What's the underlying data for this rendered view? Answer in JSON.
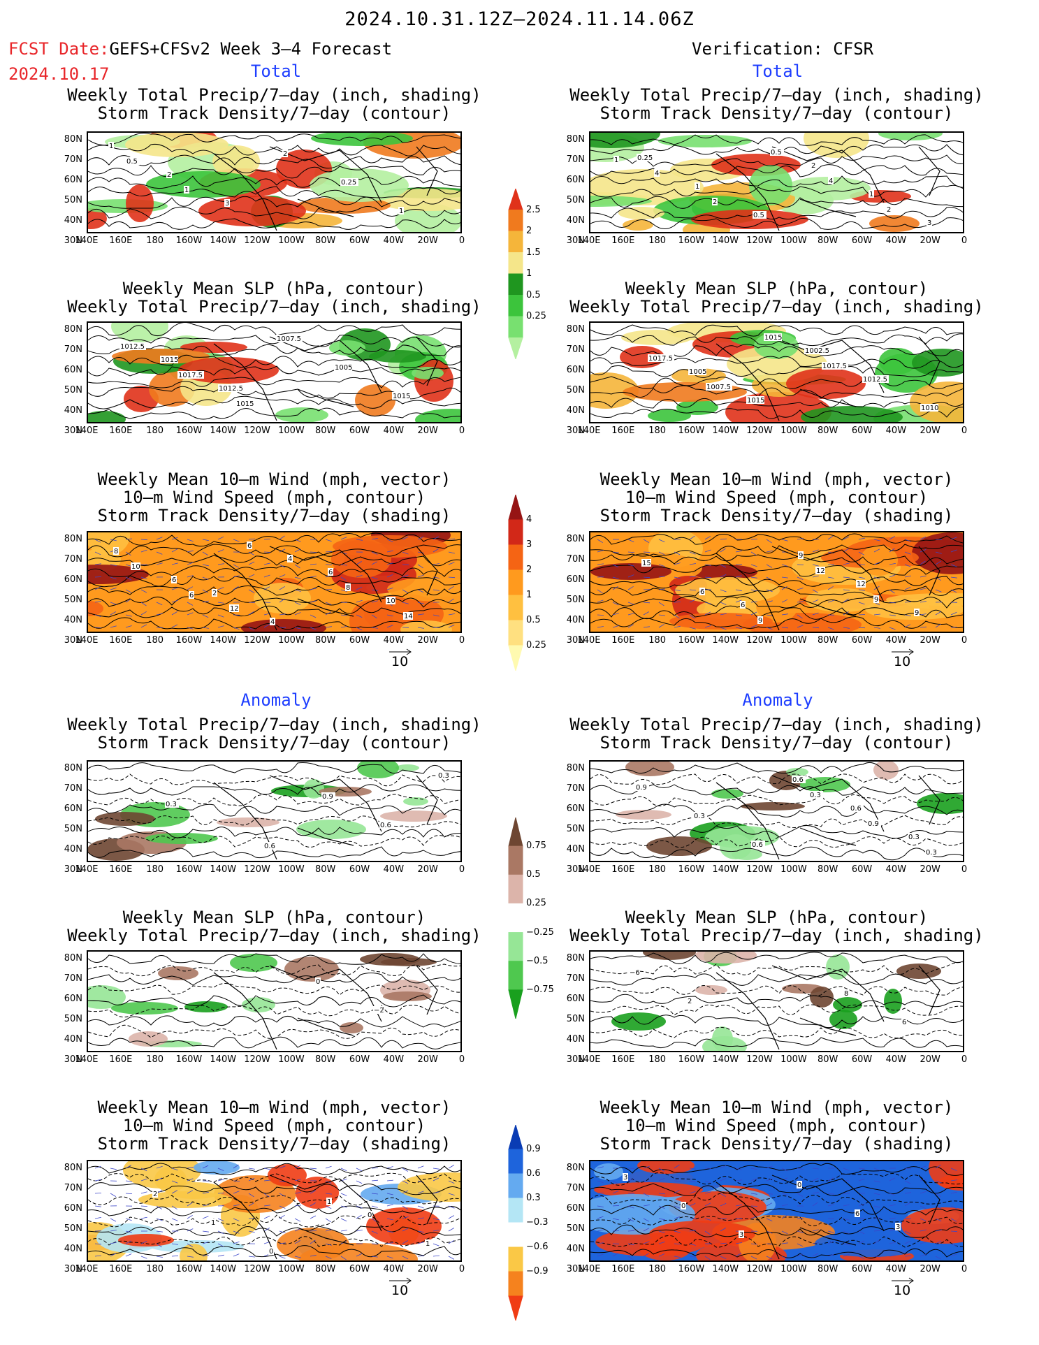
{
  "header": {
    "date_range": "2024.10.31.12Z–2024.11.14.06Z",
    "fcst_date_label": "FCST Date:",
    "fcst_product": "GEFS+CFSv2 Week 3–4 Forecast",
    "fcst_date": "2024.10.17",
    "verification": "Verification: CFSR"
  },
  "sections": {
    "total_left": "Total",
    "total_right": "Total",
    "anomaly_left": "Anomaly",
    "anomaly_right": "Anomaly"
  },
  "panel_titles": {
    "precip_storm": [
      "Weekly Total Precip/7–day (inch, shading)",
      "Storm Track Density/7–day (contour)"
    ],
    "slp_precip": [
      "Weekly Mean SLP (hPa, contour)",
      "Weekly Total Precip/7–day (inch, shading)"
    ],
    "wind_storm": [
      "Weekly Mean 10–m Wind (mph, vector)",
      "10–m Wind Speed (mph, contour)",
      "Storm Track Density/7–day (shading)"
    ]
  },
  "axes": {
    "lat_labels": [
      "80N",
      "70N",
      "60N",
      "50N",
      "40N",
      "30N"
    ],
    "lon_labels": [
      "140E",
      "160E",
      "180",
      "160W",
      "140W",
      "120W",
      "100W",
      "80W",
      "60W",
      "40W",
      "20W",
      "0"
    ]
  },
  "vector_reference": "10",
  "colorbars": {
    "precip_total": {
      "levels": [
        "0.25",
        "0.5",
        "1",
        "1.5",
        "2",
        "2.5"
      ],
      "colors": [
        "#b4f0a0",
        "#78e070",
        "#3cc43c",
        "#1f961f",
        "#f5e68a",
        "#f5b53a",
        "#f07a1e",
        "#e0321a"
      ]
    },
    "storm_total": {
      "levels": [
        "0.25",
        "0.5",
        "1",
        "2",
        "3",
        "4"
      ],
      "colors": [
        "#fffab0",
        "#ffe080",
        "#ffc040",
        "#ff9a1e",
        "#f56414",
        "#d22818",
        "#961414"
      ]
    },
    "precip_anom": {
      "levels": [
        "0.75",
        "0.5",
        "0.25",
        "−0.25",
        "−0.5",
        "−0.75"
      ],
      "colors": [
        "#19a01e",
        "#4fc84f",
        "#96e696",
        "#ffffff",
        "#dcb4aa",
        "#aa7864",
        "#6e4632"
      ]
    },
    "storm_anom": {
      "levels": [
        "0.9",
        "0.6",
        "0.3",
        "−0.3",
        "−0.6",
        "−0.9"
      ],
      "colors": [
        "#f03c14",
        "#f5821e",
        "#fac846",
        "#ffffff",
        "#b4e6f5",
        "#64aaf0",
        "#1e64dc",
        "#0a3cb4"
      ]
    }
  },
  "contour_labels": {
    "p1L": [
      "1",
      "2",
      "3",
      "2",
      "0.25",
      "1",
      "0.5",
      "1"
    ],
    "p1R": [
      "0.25",
      "1",
      "0.5",
      "2",
      "1",
      "3",
      "4",
      "2",
      "0.5",
      "4",
      "2",
      "1"
    ],
    "p2L": [
      "1015",
      "1012.5",
      "1007.5",
      "1005",
      "1015",
      "1012.5",
      "1017.5",
      "1015"
    ],
    "p2R": [
      "1005",
      "1015",
      "1002.5",
      "1012.5",
      "1010",
      "1017.5",
      "1007.5",
      "1015",
      "1017.5"
    ],
    "p3L": [
      "2",
      "4",
      "6",
      "10",
      "8",
      "6",
      "12",
      "4",
      "8",
      "14",
      "10",
      "6",
      "6"
    ],
    "p3R": [
      "6",
      "9",
      "12",
      "9",
      "15",
      "6",
      "9",
      "12",
      "9"
    ],
    "p4L": [
      "0.6",
      "0.9",
      "0.6",
      "0.3",
      "0.3"
    ],
    "p4R": [
      "0.6",
      "0.6",
      "0.3",
      "0.9",
      "0.3",
      "0.6",
      "0.3",
      "0.9",
      "0.3"
    ],
    "p5L": [
      "0",
      "−2"
    ],
    "p5R": [
      "8",
      "6",
      "−6",
      "2"
    ],
    "p6L": [
      "0",
      "1",
      "2",
      "1",
      "0",
      "1"
    ],
    "p6R": [
      "3",
      "3",
      "0",
      "3",
      "0",
      "6"
    ]
  }
}
